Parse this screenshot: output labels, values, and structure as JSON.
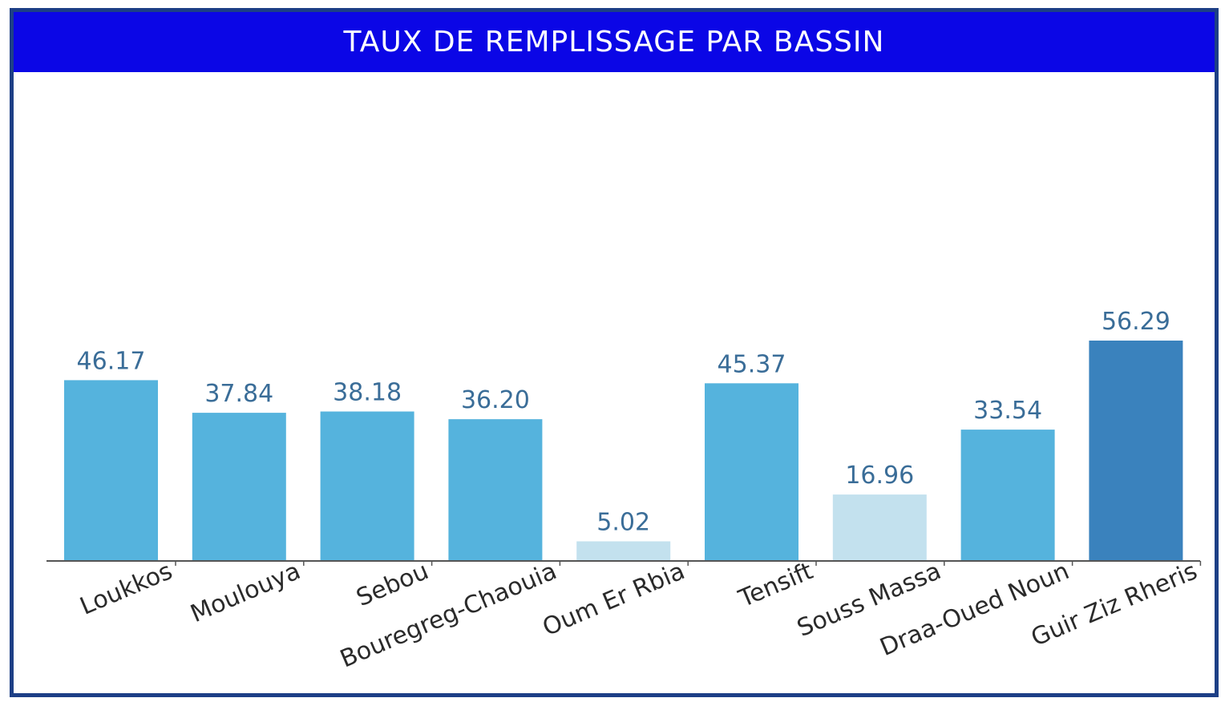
{
  "title": "TAUX DE REMPLISSAGE PAR BASSIN",
  "colors": {
    "frame": "#1d3f86",
    "title_bg": "#0b06e6",
    "title_text": "#ffffff",
    "axis": "#555555",
    "value_label": "#3a6d98"
  },
  "chart_data": {
    "type": "bar",
    "title": "TAUX DE REMPLISSAGE PAR BASSIN",
    "xlabel": "",
    "ylabel": "",
    "ylim": [
      0,
      56.29
    ],
    "grid": false,
    "categories": [
      "Loukkos",
      "Moulouya",
      "Sebou",
      "Bouregreg-Chaouia",
      "Oum Er Rbia",
      "Tensift",
      "Souss Massa",
      "Draa-Oued Noun",
      "Guir Ziz Rheris"
    ],
    "values": [
      46.17,
      37.84,
      38.18,
      36.2,
      5.02,
      45.37,
      16.96,
      33.54,
      56.29
    ],
    "value_labels": [
      "46.17",
      "37.84",
      "38.18",
      "36.20",
      "5.02",
      "45.37",
      "16.96",
      "33.54",
      "56.29"
    ],
    "bar_colors": [
      "#55b3dd",
      "#55b3dd",
      "#55b3dd",
      "#55b3dd",
      "#c3e1ee",
      "#55b3dd",
      "#c3e1ee",
      "#55b3dd",
      "#3a82bd"
    ]
  }
}
